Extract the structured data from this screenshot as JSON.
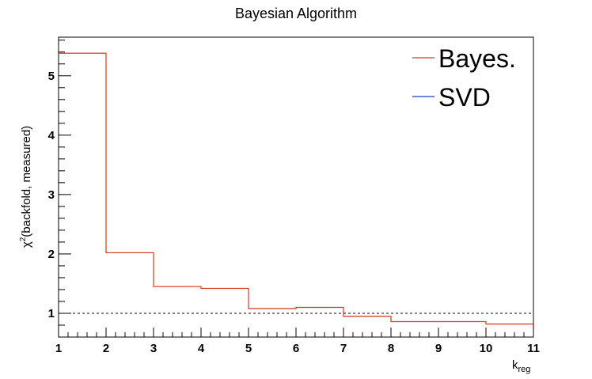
{
  "chart_data": {
    "type": "line",
    "title": "Bayesian Algorithm",
    "xlabel": {
      "main": "k",
      "sub": "reg"
    },
    "ylabel": {
      "pre": "χ",
      "sup": "2",
      "post": "(backfold, measured)"
    },
    "xlim": [
      1,
      11
    ],
    "ylim": [
      0.6,
      5.65
    ],
    "x_ticks": [
      1,
      2,
      3,
      4,
      5,
      6,
      7,
      8,
      9,
      10,
      11
    ],
    "y_ticks": [
      1,
      2,
      3,
      4,
      5
    ],
    "reference_line": {
      "y": 1.0,
      "style": "dashed",
      "color": "#000000"
    },
    "legend_position": "top-right",
    "grid": false,
    "series": [
      {
        "name": "Bayes.",
        "color": "#d03a1a",
        "style": "step",
        "bin_edges": [
          1,
          2,
          3,
          4,
          5,
          6,
          7,
          8,
          9,
          10,
          11
        ],
        "values": [
          5.38,
          2.02,
          1.45,
          1.42,
          1.08,
          1.1,
          0.95,
          0.86,
          0.86,
          0.82
        ]
      },
      {
        "name": "SVD",
        "color": "#1f3fbf",
        "style": "step",
        "bin_edges": [],
        "values": []
      }
    ]
  }
}
